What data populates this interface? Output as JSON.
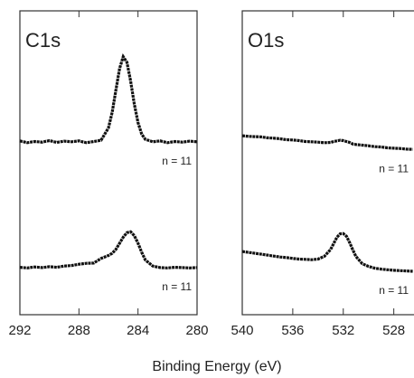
{
  "chart_data": [
    {
      "type": "line",
      "title": "C1s",
      "xlabel": "Binding Energy (eV)",
      "x": [
        292,
        291.5,
        291,
        290.5,
        290,
        289.5,
        289,
        288.5,
        288,
        287.5,
        287,
        286.5,
        286,
        285.75,
        285.5,
        285.25,
        285,
        284.75,
        284.5,
        284.25,
        284,
        283.75,
        283.5,
        283,
        282.5,
        282,
        281.5,
        281,
        280.5,
        280
      ],
      "series": [
        {
          "label": "n = 11",
          "color": "#111111",
          "values": [
            57.2,
            56.6,
            57.0,
            56.8,
            57.3,
            56.7,
            57.1,
            56.9,
            57.2,
            56.6,
            57.0,
            57.4,
            61.5,
            66.6,
            73.9,
            81.0,
            84.9,
            83.1,
            76.9,
            69.3,
            63.2,
            59.4,
            57.7,
            56.9,
            57.2,
            56.6,
            57.0,
            56.8,
            57.1,
            56.9
          ]
        },
        {
          "label": "n = 11",
          "color": "#111111",
          "values": [
            15.6,
            15.4,
            15.7,
            15.5,
            15.8,
            15.6,
            16.0,
            16.2,
            16.6,
            16.9,
            17.0,
            18.5,
            19.5,
            20.2,
            21.5,
            23.5,
            25.5,
            27.0,
            27.3,
            26.0,
            23.5,
            20.5,
            18.0,
            16.0,
            15.5,
            15.4,
            15.6,
            15.5,
            15.4,
            15.5
          ]
        }
      ],
      "xlim": [
        292,
        280
      ],
      "xticks": [
        292,
        288,
        284,
        280
      ],
      "ylim": [
        0,
        100
      ]
    },
    {
      "type": "line",
      "title": "O1s",
      "x": [
        540,
        539.5,
        539,
        538.5,
        538,
        537.5,
        537,
        536.5,
        536,
        535.5,
        535,
        534.5,
        534,
        533.5,
        533,
        532.75,
        532.5,
        532.25,
        532,
        531.75,
        531.5,
        531.25,
        531,
        530.5,
        530,
        529.5,
        529,
        528.5,
        528,
        527.5,
        527,
        526.5
      ],
      "series": [
        {
          "label": "n = 11",
          "color": "#111111",
          "values": [
            58.9,
            58.7,
            58.6,
            58.5,
            58.2,
            58.1,
            57.9,
            57.6,
            57.5,
            57.3,
            57.0,
            56.9,
            56.8,
            56.6,
            56.7,
            57.0,
            57.2,
            57.4,
            57.3,
            57.0,
            56.7,
            56.2,
            56.0,
            55.8,
            55.6,
            55.3,
            55.2,
            54.9,
            54.8,
            54.7,
            54.5,
            54.4
          ]
        },
        {
          "label": "n = 11",
          "color": "#111111",
          "values": [
            20.8,
            20.5,
            20.2,
            19.9,
            19.6,
            19.3,
            19.0,
            18.8,
            18.5,
            18.3,
            18.2,
            18.1,
            18.3,
            19.2,
            21.5,
            23.5,
            25.5,
            26.6,
            26.7,
            25.8,
            23.8,
            21.4,
            19.2,
            16.8,
            15.9,
            15.3,
            15.0,
            14.8,
            14.6,
            14.5,
            14.4,
            14.3
          ]
        }
      ],
      "xlim": [
        540,
        526.4
      ],
      "xticks": [
        540,
        536,
        532,
        528
      ],
      "ylim": [
        0,
        100
      ]
    }
  ]
}
